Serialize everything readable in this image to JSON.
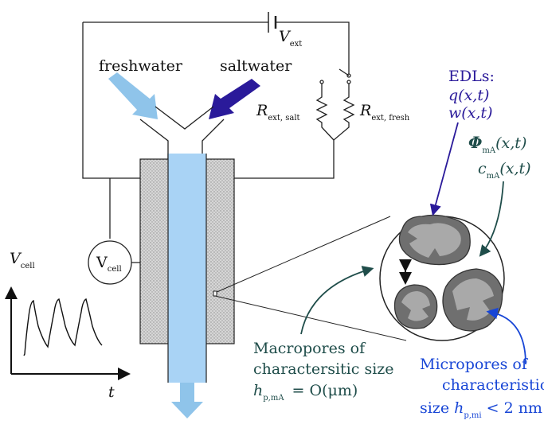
{
  "labels": {
    "freshwater": "freshwater",
    "saltwater": "saltwater",
    "v_ext_main": "V",
    "v_ext_sub": "ext",
    "r_salt_main": "R",
    "r_salt_sub": "ext, salt",
    "r_fresh_main": "R",
    "r_fresh_sub": "ext, fresh",
    "edls_title": "EDLs:",
    "edls_q": "q(x,t)",
    "edls_w": "w(x,t)",
    "phi_main": "Φ",
    "phi_sub": "mA",
    "phi_args": "(x,t)",
    "c_main": "c",
    "c_sub": "mA",
    "c_args": "(x,t)",
    "vcell_circle_main": "V",
    "vcell_circle_sub": "cell",
    "vcell_axis_main": "V",
    "vcell_axis_sub": "cell",
    "t_axis": "t",
    "macro_line1": "Macropores of",
    "macro_line2": "charactersitic size",
    "macro_h": "h",
    "macro_h_sub": "p,mA",
    "macro_eq": "= O(μm)",
    "micro_line1": "Micropores of",
    "micro_line2": "characteristic",
    "micro_size": "size",
    "micro_h": "h",
    "micro_h_sub": "p,mi",
    "micro_eq": "< 2 nm"
  },
  "colors": {
    "navy_arrow": "#2a1a9a",
    "light_blue_arrow": "#8fc4ea",
    "channel_fill": "#a9d3f5",
    "electrode_gray": "#bdbdbd",
    "teal_text": "#1f4d4a",
    "blue_text": "#1846d6"
  }
}
